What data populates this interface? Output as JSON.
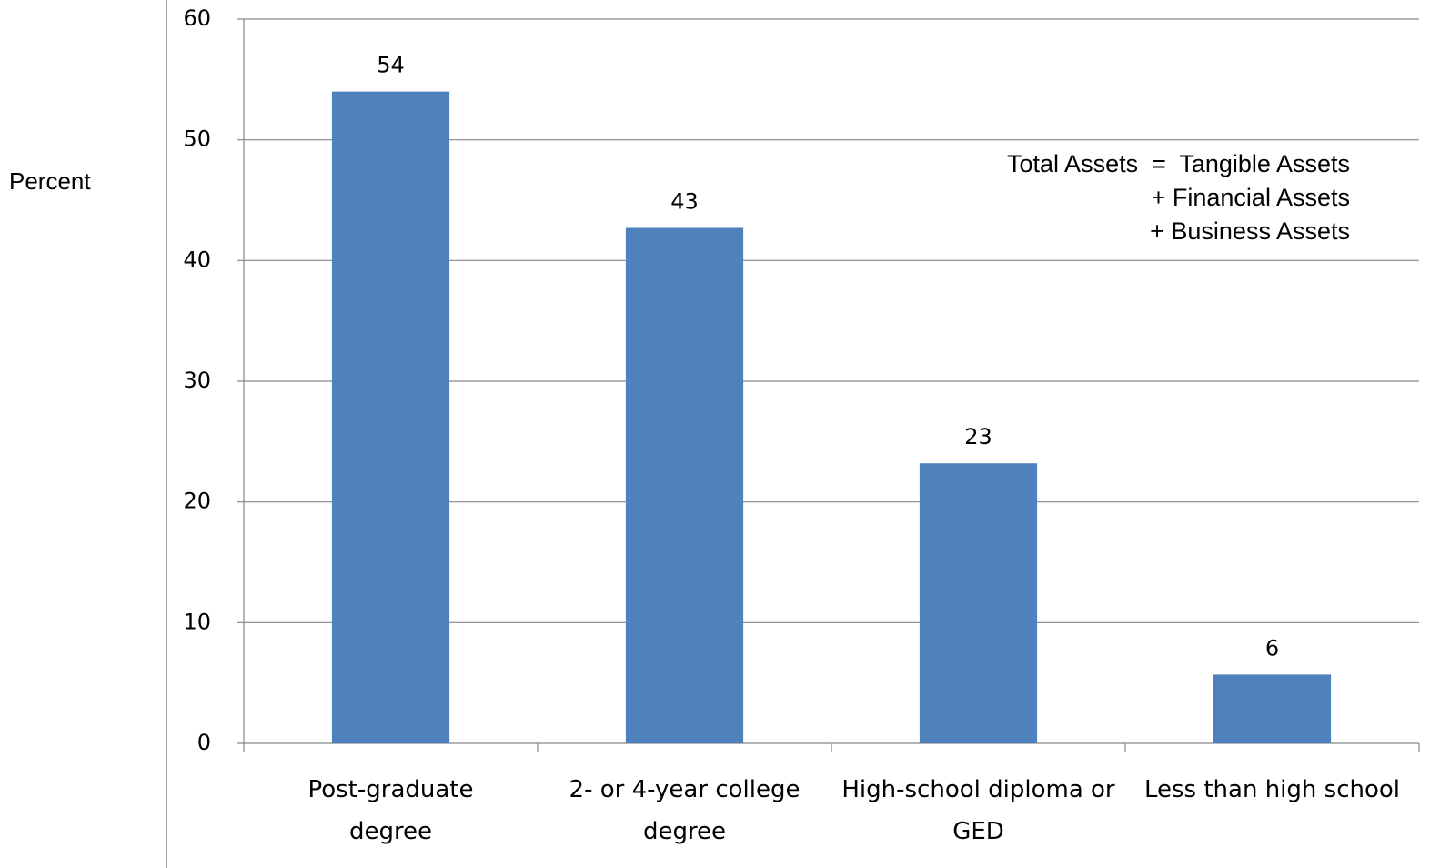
{
  "chart_data": {
    "type": "bar",
    "y_label": "Percent",
    "categories": [
      "Post-graduate degree",
      "2- or 4-year college degree",
      "High-school diploma or GED",
      "Less than high school"
    ],
    "values": [
      54,
      42.7,
      23.2,
      5.7
    ],
    "value_labels": [
      "54",
      "43",
      "23",
      "6"
    ],
    "color": "#4f81bd",
    "ylim": [
      0,
      60
    ],
    "yticks": [
      0,
      10,
      20,
      30,
      40,
      50,
      60
    ],
    "grid": true,
    "annotation": [
      "Total Assets  =  Tangible Assets",
      "+ Financial Assets",
      "+ Business Assets"
    ]
  }
}
